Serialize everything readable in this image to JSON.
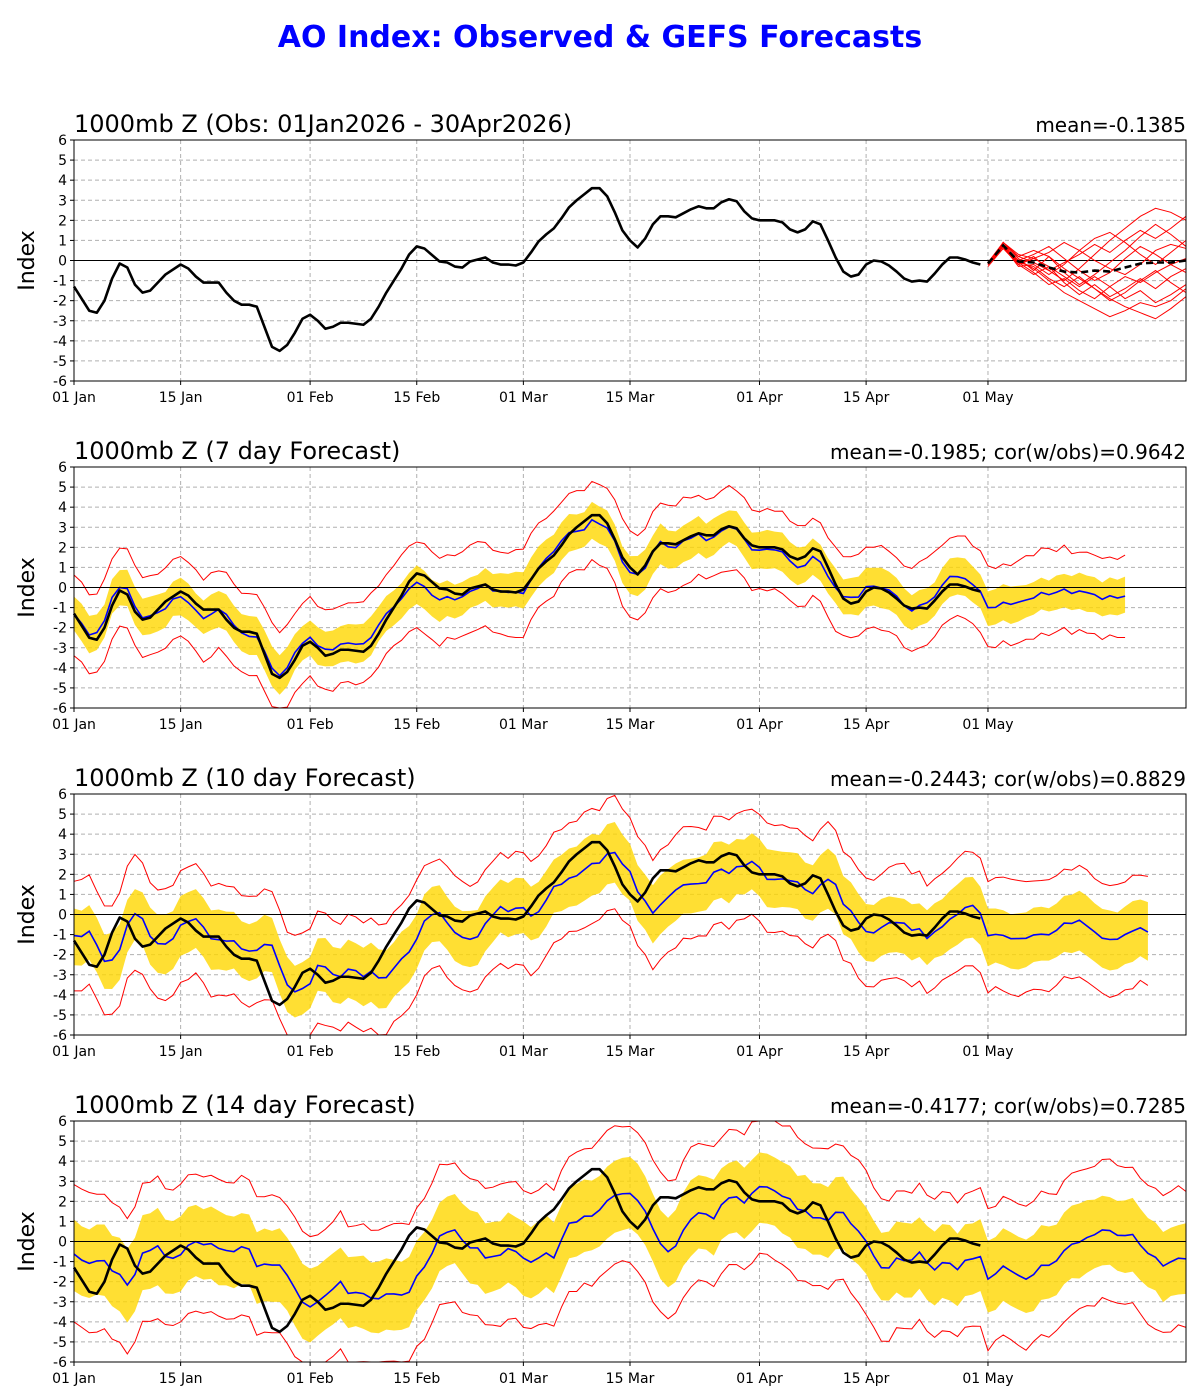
{
  "page": {
    "title": "AO Index: Observed & GEFS Forecasts"
  },
  "chart_data": [
    {
      "type": "line",
      "title": "1000mb Z (Obs: 01Jan2026 - 30Apr2026)",
      "stats": "mean=-0.1385",
      "ylabel": "Index",
      "xlabel": "",
      "ylim": [
        -6,
        6
      ],
      "xlim": [
        0,
        146
      ],
      "grid": true,
      "x_ticks": [
        {
          "x": 0,
          "label": "01 Jan"
        },
        {
          "x": 14,
          "label": "15 Jan"
        },
        {
          "x": 31,
          "label": "01 Feb"
        },
        {
          "x": 45,
          "label": "15 Feb"
        },
        {
          "x": 59,
          "label": "01 Mar"
        },
        {
          "x": 73,
          "label": "15 Mar"
        },
        {
          "x": 90,
          "label": "01 Apr"
        },
        {
          "x": 104,
          "label": "15 Apr"
        },
        {
          "x": 120,
          "label": "01 May"
        }
      ],
      "y_ticks": [
        -6,
        -5,
        -4,
        -3,
        -2,
        -1,
        0,
        1,
        2,
        3,
        4,
        5,
        6
      ],
      "series": [
        {
          "role": "observed",
          "color": "#000000",
          "x": [
            0,
            2,
            3,
            4,
            5,
            6,
            7,
            8,
            9,
            10,
            11,
            12,
            14,
            15,
            16,
            17,
            19,
            20,
            21,
            22,
            23,
            24,
            26,
            27,
            28,
            29,
            30,
            31,
            32,
            33,
            34,
            35,
            36,
            38,
            39,
            40,
            41,
            42,
            43,
            44,
            45,
            46,
            48,
            49,
            50,
            51,
            52,
            54,
            55,
            56,
            57,
            58,
            59,
            60,
            61,
            62,
            63,
            64,
            65,
            66,
            67,
            68,
            69,
            70,
            71,
            72,
            73,
            74,
            75,
            76,
            77,
            78,
            79,
            80,
            81,
            82,
            83,
            84,
            85,
            86,
            87,
            88,
            89,
            90,
            91,
            92,
            93,
            94,
            95,
            96,
            97,
            98,
            99,
            100,
            101,
            102,
            103,
            104,
            105,
            106,
            107,
            108,
            109,
            110,
            111,
            112,
            113,
            114,
            115,
            116,
            117,
            118,
            119
          ],
          "y": [
            -1.3,
            -2.5,
            -2.6,
            -2.0,
            -0.9,
            -0.15,
            -0.35,
            -1.2,
            -1.6,
            -1.5,
            -1.1,
            -0.7,
            -0.2,
            -0.4,
            -0.8,
            -1.1,
            -1.1,
            -1.6,
            -2.0,
            -2.2,
            -2.2,
            -2.3,
            -4.3,
            -4.5,
            -4.2,
            -3.6,
            -2.9,
            -2.7,
            -3.0,
            -3.4,
            -3.3,
            -3.1,
            -3.1,
            -3.2,
            -2.9,
            -2.3,
            -1.6,
            -1.0,
            -0.4,
            0.3,
            0.7,
            0.6,
            -0.05,
            -0.1,
            -0.3,
            -0.35,
            -0.05,
            0.15,
            -0.1,
            -0.2,
            -0.2,
            -0.25,
            -0.1,
            0.4,
            0.95,
            1.3,
            1.6,
            2.1,
            2.65,
            3.0,
            3.3,
            3.6,
            3.6,
            3.2,
            2.4,
            1.5,
            1.0,
            0.65,
            1.1,
            1.8,
            2.2,
            2.2,
            2.15,
            2.35,
            2.55,
            2.7,
            2.6,
            2.6,
            2.9,
            3.05,
            2.95,
            2.45,
            2.1,
            2.0,
            2.0,
            2.0,
            1.9,
            1.55,
            1.4,
            1.55,
            1.95,
            1.8,
            1.0,
            0.15,
            -0.55,
            -0.8,
            -0.7,
            -0.2,
            0.0,
            -0.05,
            -0.25,
            -0.55,
            -0.9,
            -1.05,
            -1.0,
            -1.05,
            -0.65,
            -0.2,
            0.15,
            0.15,
            0.05,
            -0.1,
            -0.2
          ]
        },
        {
          "role": "forecast-ensemble",
          "color": "#ff0000",
          "x_start": 120,
          "members": [
            [
              -0.2,
              0.8,
              -0.2,
              0.2,
              -0.5,
              -1.0,
              -0.4,
              0.3,
              1.0,
              1.6,
              2.2,
              2.6,
              2.4,
              2.0
            ],
            [
              -0.2,
              0.6,
              0.0,
              -0.4,
              -1.0,
              -1.6,
              -2.0,
              -2.4,
              -2.8,
              -2.5,
              -2.1,
              -2.3,
              -2.0,
              -1.4
            ],
            [
              -0.1,
              0.9,
              0.3,
              0.1,
              0.4,
              0.9,
              0.5,
              0.0,
              -0.4,
              -0.7,
              -0.2,
              0.5,
              0.8,
              0.6
            ],
            [
              -0.2,
              0.7,
              -0.1,
              -0.6,
              -1.2,
              -0.9,
              -1.5,
              -1.9,
              -1.3,
              -0.8,
              -1.1,
              -0.6,
              -0.2,
              0.1
            ],
            [
              -0.2,
              0.8,
              0.2,
              0.5,
              0.2,
              -0.4,
              -0.9,
              -1.4,
              -1.9,
              -2.3,
              -2.6,
              -2.9,
              -2.4,
              -1.8
            ],
            [
              -0.1,
              0.7,
              -0.3,
              -0.2,
              -0.7,
              -0.2,
              0.5,
              1.1,
              1.4,
              0.9,
              0.3,
              -0.2,
              0.4,
              1.0
            ],
            [
              -0.2,
              0.9,
              0.1,
              -0.5,
              0.2,
              -0.6,
              -1.2,
              -0.7,
              -0.1,
              0.5,
              1.2,
              1.8,
              1.3,
              0.7
            ],
            [
              -0.3,
              0.6,
              -0.2,
              0.1,
              -0.3,
              -1.1,
              -1.7,
              -1.2,
              -1.8,
              -1.4,
              -0.9,
              -1.4,
              -0.8,
              -0.4
            ],
            [
              -0.2,
              0.8,
              0.0,
              0.3,
              0.7,
              0.1,
              -0.5,
              -1.0,
              -0.6,
              0.1,
              0.7,
              0.3,
              -0.2,
              -0.6
            ],
            [
              -0.1,
              0.7,
              -0.1,
              -0.3,
              -0.9,
              -1.3,
              -0.8,
              -1.4,
              -2.0,
              -1.6,
              -1.0,
              -0.5,
              -1.1,
              -1.6
            ],
            [
              -0.2,
              0.9,
              0.2,
              -0.1,
              -0.5,
              -0.1,
              0.3,
              0.8,
              0.4,
              1.0,
              1.5,
              1.1,
              1.6,
              2.2
            ],
            [
              -0.2,
              0.7,
              -0.2,
              -0.7,
              -0.3,
              -0.8,
              -1.3,
              -0.8,
              -1.3,
              -1.9,
              -1.5,
              -2.1,
              -1.7,
              -1.2
            ]
          ],
          "mean_color": "#000000",
          "mean": [
            -0.15,
            0.75,
            -0.05,
            -0.1,
            -0.35,
            -0.55,
            -0.6,
            -0.5,
            -0.55,
            -0.35,
            -0.15,
            -0.1,
            -0.1,
            0.0
          ]
        }
      ]
    },
    {
      "type": "line",
      "title": "1000mb Z (7 day Forecast)",
      "stats": "mean=-0.1985; cor(w/obs)=0.9642",
      "ylabel": "Index",
      "ylim": [
        -6,
        6
      ],
      "xlim": [
        0,
        146
      ],
      "lag": 0,
      "fc_end": 138,
      "spread": 0.9,
      "outer": 1.9,
      "seed": 3,
      "colors": {
        "band": "#ffd700",
        "mean": "#0000ff",
        "extremes": "#ff0000",
        "obs": "#000000"
      }
    },
    {
      "type": "line",
      "title": "1000mb Z (10 day Forecast)",
      "stats": "mean=-0.2443; cor(w/obs)=0.8829",
      "ylabel": "Index",
      "ylim": [
        -6,
        6
      ],
      "xlim": [
        0,
        146
      ],
      "lag": 2,
      "fc_end": 141,
      "spread": 1.4,
      "outer": 2.6,
      "seed": 7,
      "colors": {
        "band": "#ffd700",
        "mean": "#0000ff",
        "extremes": "#ff0000",
        "obs": "#000000"
      }
    },
    {
      "type": "line",
      "title": "1000mb Z (14 day Forecast)",
      "stats": "mean=-0.4177; cor(w/obs)=0.7285",
      "ylabel": "Index",
      "ylim": [
        -6,
        6
      ],
      "xlim": [
        0,
        146
      ],
      "lag": 4,
      "fc_end": 146,
      "spread": 1.8,
      "outer": 3.3,
      "seed": 11,
      "colors": {
        "band": "#ffd700",
        "mean": "#0000ff",
        "extremes": "#ff0000",
        "obs": "#000000"
      }
    }
  ]
}
